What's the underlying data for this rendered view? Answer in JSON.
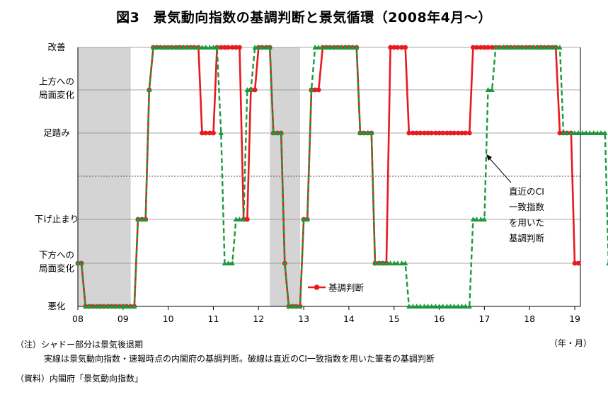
{
  "chart_data": {
    "type": "line",
    "title": "図3　景気動向指数の基調判断と景気循環（2008年4月～）",
    "y_levels": [
      "悪化",
      "下方への局面変化",
      "下げ止まり",
      "",
      "足踏み",
      "上方への局面変化",
      "改善"
    ],
    "y_label_lines": [
      [
        "改善"
      ],
      [
        "上方への",
        "局面変化"
      ],
      [
        "足踏み"
      ],
      [
        "下げ止まり"
      ],
      [
        "下方への",
        "局面変化"
      ],
      [
        "悪化"
      ]
    ],
    "x_ticks": [
      "08",
      "09",
      "10",
      "11",
      "12",
      "13",
      "14",
      "15",
      "16",
      "17",
      "18",
      "19"
    ],
    "x_unit": "（年・月）",
    "recession_shading": [
      [
        2008.0,
        2009.17
      ],
      [
        2012.25,
        2012.92
      ]
    ],
    "series": [
      {
        "name": "基調判断",
        "style": "solid",
        "color": "#e8191f",
        "points": [
          [
            2008.0,
            1
          ],
          [
            2008.08,
            1
          ],
          [
            2008.17,
            0
          ],
          [
            2008.25,
            0
          ],
          [
            2008.33,
            0
          ],
          [
            2008.42,
            0
          ],
          [
            2008.5,
            0
          ],
          [
            2008.58,
            0
          ],
          [
            2008.67,
            0
          ],
          [
            2008.75,
            0
          ],
          [
            2008.83,
            0
          ],
          [
            2008.92,
            0
          ],
          [
            2009.0,
            0
          ],
          [
            2009.08,
            0
          ],
          [
            2009.17,
            0
          ],
          [
            2009.25,
            0
          ],
          [
            2009.33,
            2
          ],
          [
            2009.42,
            2
          ],
          [
            2009.5,
            2
          ],
          [
            2009.58,
            5
          ],
          [
            2009.67,
            6
          ],
          [
            2009.75,
            6
          ],
          [
            2009.83,
            6
          ],
          [
            2009.92,
            6
          ],
          [
            2010.0,
            6
          ],
          [
            2010.08,
            6
          ],
          [
            2010.17,
            6
          ],
          [
            2010.25,
            6
          ],
          [
            2010.33,
            6
          ],
          [
            2010.42,
            6
          ],
          [
            2010.5,
            6
          ],
          [
            2010.58,
            6
          ],
          [
            2010.67,
            6
          ],
          [
            2010.75,
            4
          ],
          [
            2010.83,
            4
          ],
          [
            2010.92,
            4
          ],
          [
            2011.0,
            4
          ],
          [
            2011.08,
            6
          ],
          [
            2011.17,
            6
          ],
          [
            2011.25,
            6
          ],
          [
            2011.33,
            6
          ],
          [
            2011.42,
            6
          ],
          [
            2011.5,
            6
          ],
          [
            2011.58,
            6
          ],
          [
            2011.67,
            2
          ],
          [
            2011.75,
            2
          ],
          [
            2011.83,
            5
          ],
          [
            2011.92,
            5
          ],
          [
            2012.0,
            6
          ],
          [
            2012.08,
            6
          ],
          [
            2012.17,
            6
          ],
          [
            2012.25,
            6
          ],
          [
            2012.33,
            4
          ],
          [
            2012.42,
            4
          ],
          [
            2012.5,
            4
          ],
          [
            2012.58,
            1
          ],
          [
            2012.67,
            0
          ],
          [
            2012.75,
            0
          ],
          [
            2012.83,
            0
          ],
          [
            2012.92,
            0
          ],
          [
            2013.0,
            2
          ],
          [
            2013.08,
            2
          ],
          [
            2013.17,
            5
          ],
          [
            2013.25,
            5
          ],
          [
            2013.33,
            5
          ],
          [
            2013.42,
            6
          ],
          [
            2013.5,
            6
          ],
          [
            2013.58,
            6
          ],
          [
            2013.67,
            6
          ],
          [
            2013.75,
            6
          ],
          [
            2013.83,
            6
          ],
          [
            2013.92,
            6
          ],
          [
            2014.0,
            6
          ],
          [
            2014.08,
            6
          ],
          [
            2014.17,
            6
          ],
          [
            2014.25,
            4
          ],
          [
            2014.33,
            4
          ],
          [
            2014.42,
            4
          ],
          [
            2014.5,
            4
          ],
          [
            2014.58,
            1
          ],
          [
            2014.67,
            1
          ],
          [
            2014.75,
            1
          ],
          [
            2014.83,
            1
          ],
          [
            2014.92,
            6
          ],
          [
            2015.0,
            6
          ],
          [
            2015.08,
            6
          ],
          [
            2015.17,
            6
          ],
          [
            2015.25,
            6
          ],
          [
            2015.33,
            4
          ],
          [
            2015.42,
            4
          ],
          [
            2015.5,
            4
          ],
          [
            2015.58,
            4
          ],
          [
            2015.67,
            4
          ],
          [
            2015.75,
            4
          ],
          [
            2015.83,
            4
          ],
          [
            2015.92,
            4
          ],
          [
            2016.0,
            4
          ],
          [
            2016.08,
            4
          ],
          [
            2016.17,
            4
          ],
          [
            2016.25,
            4
          ],
          [
            2016.33,
            4
          ],
          [
            2016.42,
            4
          ],
          [
            2016.5,
            4
          ],
          [
            2016.58,
            4
          ],
          [
            2016.67,
            4
          ],
          [
            2016.75,
            6
          ],
          [
            2016.83,
            6
          ],
          [
            2016.92,
            6
          ],
          [
            2017.0,
            6
          ],
          [
            2017.08,
            6
          ],
          [
            2017.17,
            6
          ],
          [
            2017.25,
            6
          ],
          [
            2017.33,
            6
          ],
          [
            2017.42,
            6
          ],
          [
            2017.5,
            6
          ],
          [
            2017.58,
            6
          ],
          [
            2017.67,
            6
          ],
          [
            2017.75,
            6
          ],
          [
            2017.83,
            6
          ],
          [
            2017.92,
            6
          ],
          [
            2018.0,
            6
          ],
          [
            2018.08,
            6
          ],
          [
            2018.17,
            6
          ],
          [
            2018.25,
            6
          ],
          [
            2018.33,
            6
          ],
          [
            2018.42,
            6
          ],
          [
            2018.5,
            6
          ],
          [
            2018.58,
            6
          ],
          [
            2018.67,
            4
          ],
          [
            2018.75,
            4
          ],
          [
            2018.83,
            4
          ],
          [
            2018.92,
            4
          ],
          [
            2019.0,
            1
          ],
          [
            2019.08,
            1
          ]
        ]
      },
      {
        "name": "",
        "style": "dashed",
        "color": "#1a9a3c",
        "points": [
          [
            2008.0,
            1
          ],
          [
            2008.08,
            1
          ],
          [
            2008.17,
            0
          ],
          [
            2008.25,
            0
          ],
          [
            2008.33,
            0
          ],
          [
            2008.42,
            0
          ],
          [
            2008.5,
            0
          ],
          [
            2008.58,
            0
          ],
          [
            2008.67,
            0
          ],
          [
            2008.75,
            0
          ],
          [
            2008.83,
            0
          ],
          [
            2008.92,
            0
          ],
          [
            2009.0,
            0
          ],
          [
            2009.08,
            0
          ],
          [
            2009.17,
            0
          ],
          [
            2009.25,
            0
          ],
          [
            2009.33,
            2
          ],
          [
            2009.42,
            2
          ],
          [
            2009.5,
            2
          ],
          [
            2009.58,
            5
          ],
          [
            2009.67,
            6
          ],
          [
            2009.75,
            6
          ],
          [
            2009.83,
            6
          ],
          [
            2009.92,
            6
          ],
          [
            2010.0,
            6
          ],
          [
            2010.08,
            6
          ],
          [
            2010.17,
            6
          ],
          [
            2010.25,
            6
          ],
          [
            2010.33,
            6
          ],
          [
            2010.42,
            6
          ],
          [
            2010.5,
            6
          ],
          [
            2010.58,
            6
          ],
          [
            2010.67,
            6
          ],
          [
            2010.75,
            6
          ],
          [
            2010.83,
            6
          ],
          [
            2010.92,
            6
          ],
          [
            2011.0,
            6
          ],
          [
            2011.08,
            6
          ],
          [
            2011.17,
            4
          ],
          [
            2011.25,
            1
          ],
          [
            2011.33,
            1
          ],
          [
            2011.42,
            1
          ],
          [
            2011.5,
            2
          ],
          [
            2011.58,
            2
          ],
          [
            2011.67,
            2
          ],
          [
            2011.75,
            5
          ],
          [
            2011.83,
            5
          ],
          [
            2011.92,
            6
          ],
          [
            2012.0,
            6
          ],
          [
            2012.08,
            6
          ],
          [
            2012.17,
            6
          ],
          [
            2012.25,
            6
          ],
          [
            2012.33,
            4
          ],
          [
            2012.42,
            4
          ],
          [
            2012.5,
            4
          ],
          [
            2012.58,
            1
          ],
          [
            2012.67,
            0
          ],
          [
            2012.75,
            0
          ],
          [
            2012.83,
            0
          ],
          [
            2012.92,
            0
          ],
          [
            2013.0,
            2
          ],
          [
            2013.08,
            2
          ],
          [
            2013.17,
            5
          ],
          [
            2013.25,
            6
          ],
          [
            2013.33,
            6
          ],
          [
            2013.42,
            6
          ],
          [
            2013.5,
            6
          ],
          [
            2013.58,
            6
          ],
          [
            2013.67,
            6
          ],
          [
            2013.75,
            6
          ],
          [
            2013.83,
            6
          ],
          [
            2013.92,
            6
          ],
          [
            2014.0,
            6
          ],
          [
            2014.08,
            6
          ],
          [
            2014.17,
            6
          ],
          [
            2014.25,
            4
          ],
          [
            2014.33,
            4
          ],
          [
            2014.42,
            4
          ],
          [
            2014.5,
            4
          ],
          [
            2014.58,
            1
          ],
          [
            2014.67,
            1
          ],
          [
            2014.75,
            1
          ],
          [
            2014.83,
            1
          ],
          [
            2014.92,
            1
          ],
          [
            2015.0,
            1
          ],
          [
            2015.08,
            1
          ],
          [
            2015.17,
            1
          ],
          [
            2015.25,
            1
          ],
          [
            2015.33,
            0
          ],
          [
            2015.42,
            0
          ],
          [
            2015.5,
            0
          ],
          [
            2015.58,
            0
          ],
          [
            2015.67,
            0
          ],
          [
            2015.75,
            0
          ],
          [
            2015.83,
            0
          ],
          [
            2015.92,
            0
          ],
          [
            2016.0,
            0
          ],
          [
            2016.08,
            0
          ],
          [
            2016.17,
            0
          ],
          [
            2016.25,
            0
          ],
          [
            2016.33,
            0
          ],
          [
            2016.42,
            0
          ],
          [
            2016.5,
            0
          ],
          [
            2016.58,
            0
          ],
          [
            2016.67,
            0
          ],
          [
            2016.75,
            2
          ],
          [
            2016.83,
            2
          ],
          [
            2016.92,
            2
          ],
          [
            2017.0,
            2
          ],
          [
            2017.08,
            5
          ],
          [
            2017.17,
            5
          ],
          [
            2017.25,
            6
          ],
          [
            2017.33,
            6
          ],
          [
            2017.42,
            6
          ],
          [
            2017.5,
            6
          ],
          [
            2017.58,
            6
          ],
          [
            2017.67,
            6
          ],
          [
            2017.75,
            6
          ],
          [
            2017.83,
            6
          ],
          [
            2017.92,
            6
          ],
          [
            2018.0,
            6
          ],
          [
            2018.08,
            6
          ],
          [
            2018.17,
            6
          ],
          [
            2018.25,
            6
          ],
          [
            2018.33,
            6
          ],
          [
            2018.42,
            6
          ],
          [
            2018.5,
            6
          ],
          [
            2018.58,
            6
          ],
          [
            2018.67,
            6
          ],
          [
            2018.75,
            4
          ],
          [
            2018.83,
            4
          ],
          [
            2018.92,
            4
          ],
          [
            2019.0,
            4
          ],
          [
            2019.08,
            4
          ],
          [
            2019.17,
            4
          ],
          [
            2019.25,
            4
          ],
          [
            2019.33,
            4
          ],
          [
            2019.42,
            4
          ],
          [
            2019.5,
            4
          ],
          [
            2019.58,
            4
          ],
          [
            2019.67,
            4
          ],
          [
            2019.75,
            1
          ],
          [
            2019.83,
            1
          ]
        ]
      }
    ],
    "legend_label": "基調判断",
    "annotation_lines": [
      "直近のCI",
      "一致指数",
      "を用いた",
      "基調判断"
    ]
  },
  "notes": [
    "（注）シャドー部分は景気後退期",
    "実線は景気動向指数・速報時点の内閣府の基調判断。破線は直近のCI一致指数を用いた筆者の基調判断",
    "（資料）内閣府「景気動向指数」"
  ]
}
